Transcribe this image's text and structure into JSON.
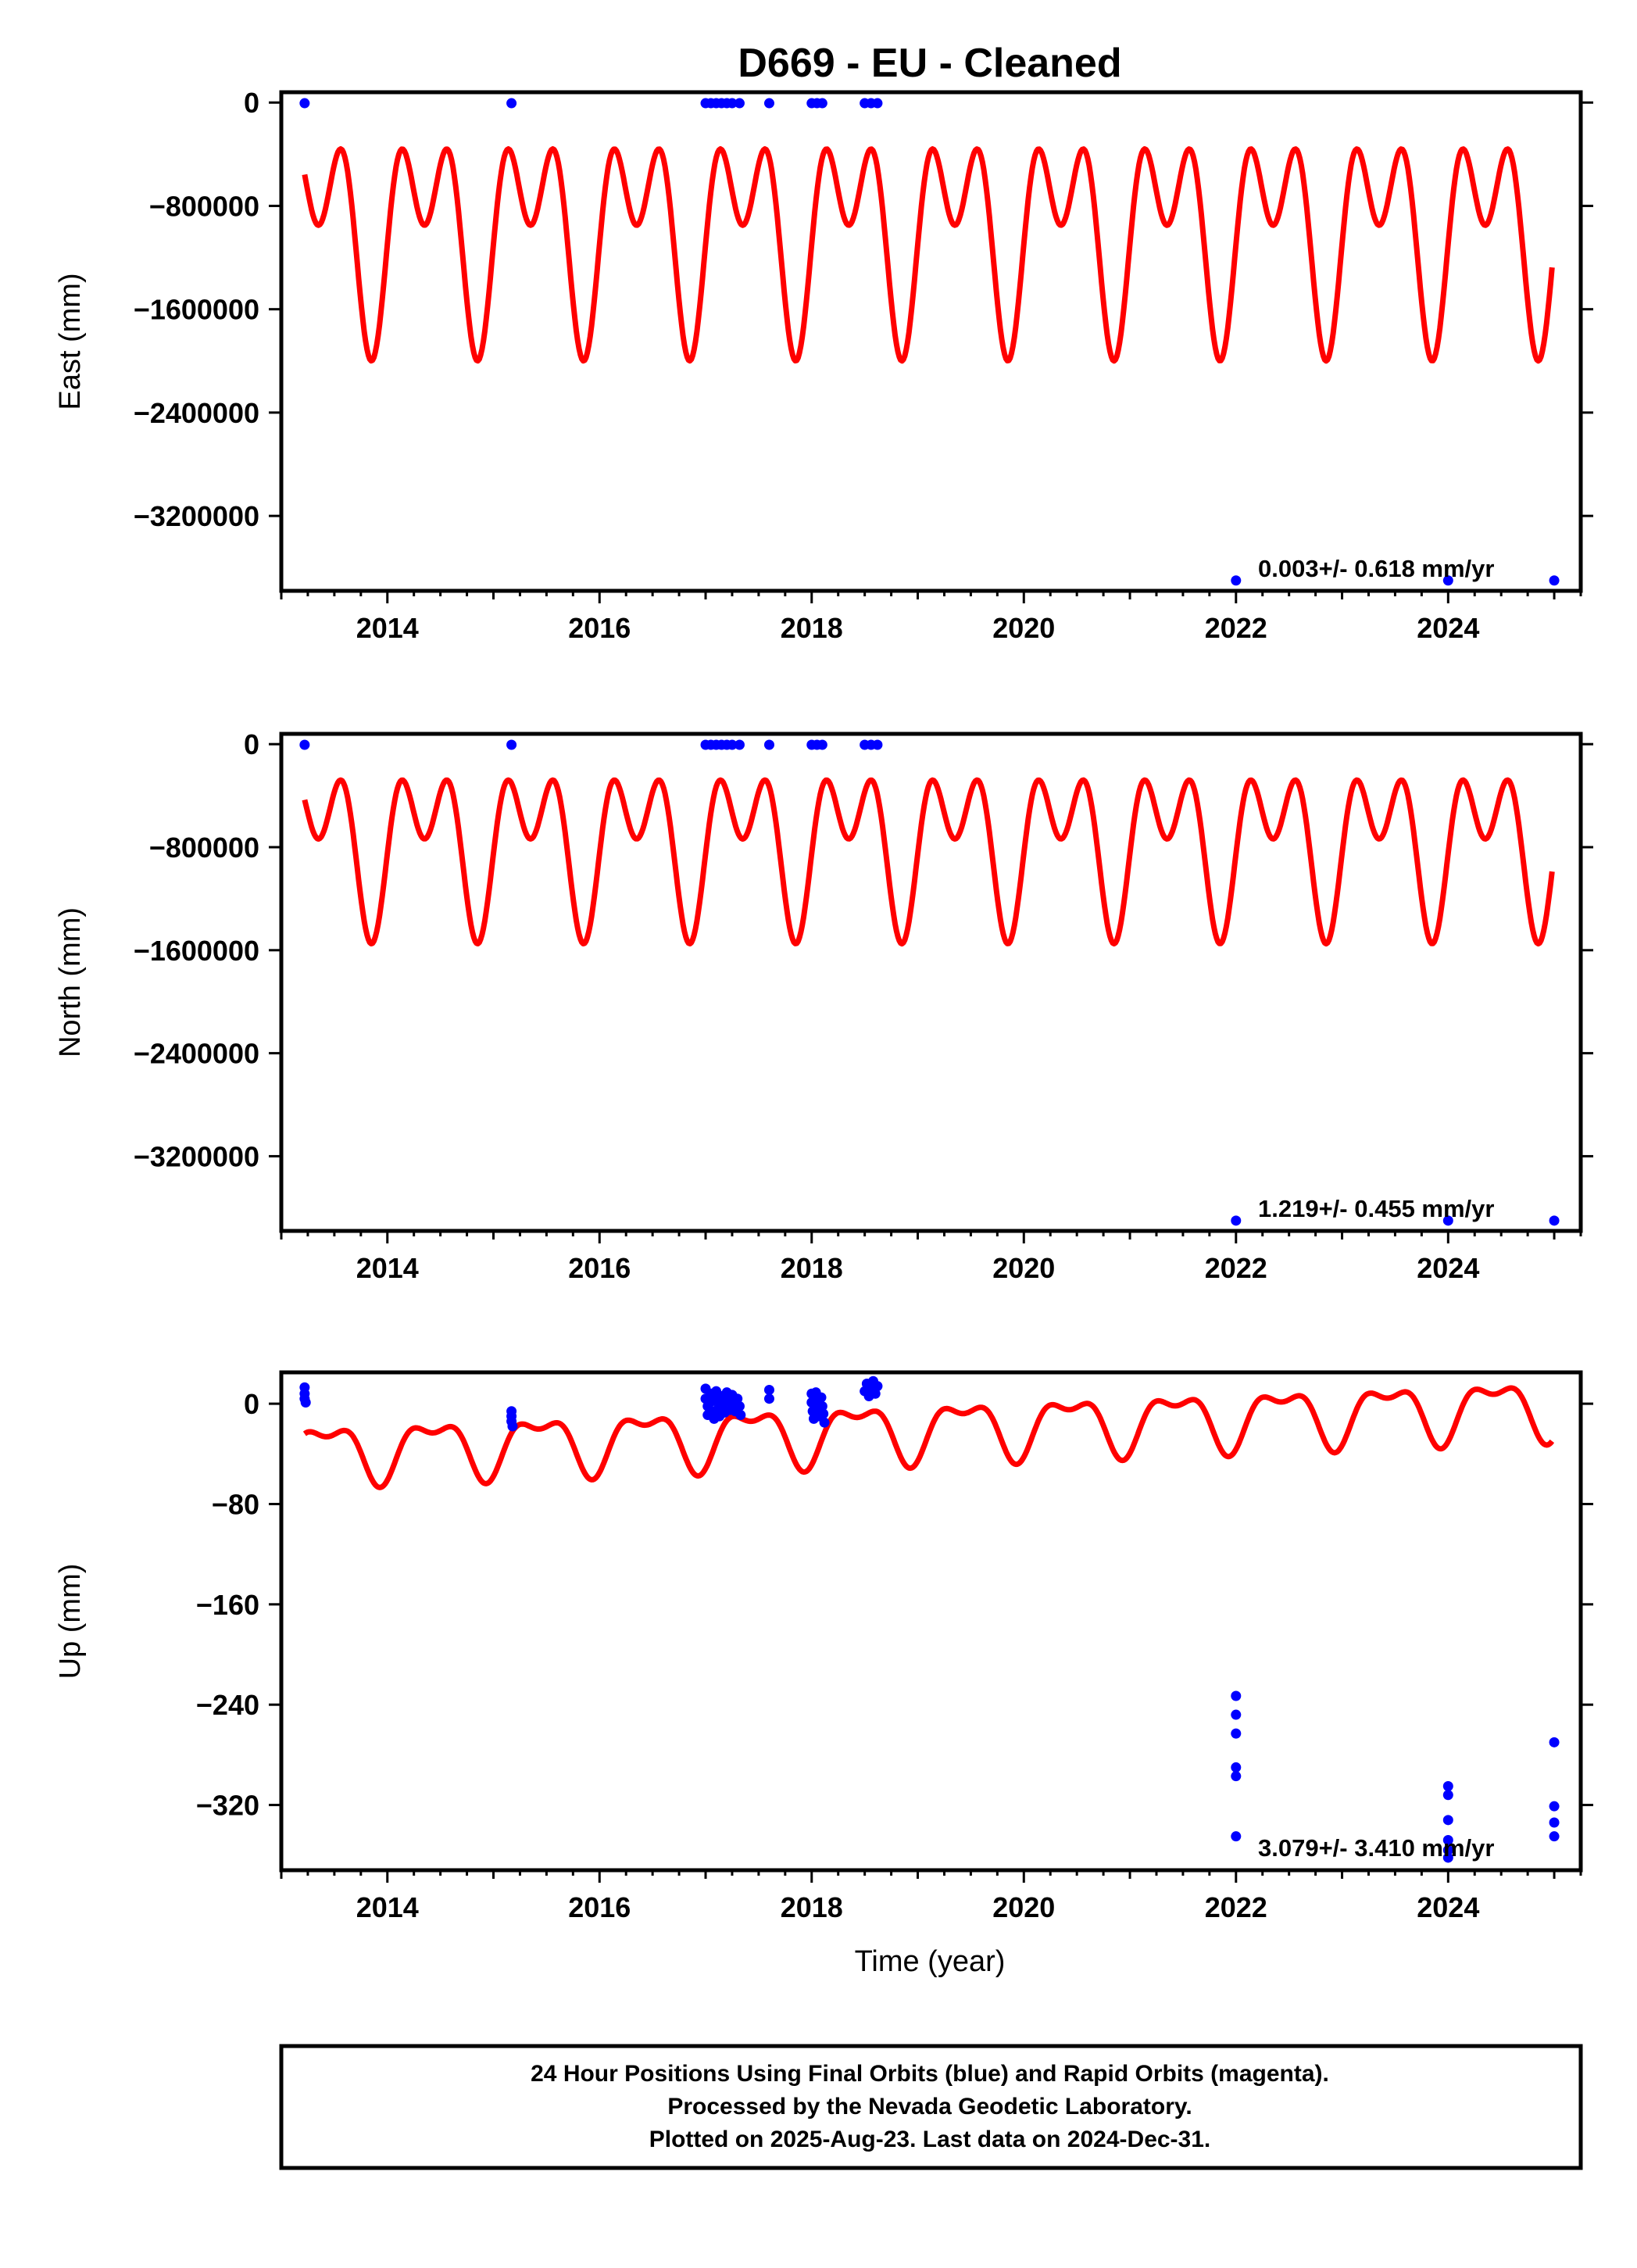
{
  "title": "D669  - EU - Cleaned",
  "xlabel": "Time (year)",
  "footer": {
    "line1": "24 Hour Positions Using Final Orbits (blue) and Rapid Orbits (magenta).",
    "line2": "Processed by the Nevada Geodetic Laboratory.",
    "line3": "Plotted on 2025-Aug-23. Last data on 2024-Dec-31."
  },
  "colors": {
    "data": "#0000ff",
    "model": "#ff0000",
    "frame": "#000000"
  },
  "chart_data": [
    {
      "type": "scatter",
      "ylabel": "East (mm)",
      "xlim": [
        2013.0,
        2025.25
      ],
      "ylim": [
        -3780000,
        80000
      ],
      "x_ticks": [
        "2014",
        "2016",
        "2018",
        "2020",
        "2022",
        "2024"
      ],
      "y_ticks": [
        "0",
        "-800000",
        "-1600000",
        "-2400000",
        "-3200000"
      ],
      "rate_label": "0.003+/- 0.618 mm/yr",
      "points": [
        [
          2013.22,
          -5000
        ],
        [
          2015.17,
          -5000
        ],
        [
          2017.0,
          -5000
        ],
        [
          2017.05,
          -5000
        ],
        [
          2017.1,
          -5000
        ],
        [
          2017.15,
          -5000
        ],
        [
          2017.2,
          -5000
        ],
        [
          2017.25,
          -5000
        ],
        [
          2017.32,
          -5000
        ],
        [
          2017.6,
          -5000
        ],
        [
          2018.0,
          -5000
        ],
        [
          2018.05,
          -5000
        ],
        [
          2018.1,
          -5000
        ],
        [
          2018.5,
          -5000
        ],
        [
          2018.56,
          -5000
        ],
        [
          2018.62,
          -5000
        ],
        [
          2022.0,
          -3700000
        ],
        [
          2024.0,
          -3700000
        ],
        [
          2025.0,
          -3700000
        ]
      ],
      "model": {
        "offset": 0,
        "trend": 0,
        "annual_amp": 1000000,
        "annual_phase": 2013.85,
        "annual_sign": -1,
        "semi_amp": 1000000,
        "semi_phase": 2013.85,
        "semi_sign": -1,
        "shift": 0,
        "start": 2013.22,
        "end": 2024.98,
        "top": 0,
        "bottom": -2000000
      }
    },
    {
      "type": "scatter",
      "ylabel": "North (mm)",
      "xlim": [
        2013.0,
        2025.25
      ],
      "ylim": [
        -3780000,
        80000
      ],
      "x_ticks": [
        "2014",
        "2016",
        "2018",
        "2020",
        "2022",
        "2024"
      ],
      "y_ticks": [
        "0",
        "-800000",
        "-1600000",
        "-2400000",
        "-3200000"
      ],
      "rate_label": "1.219+/- 0.455 mm/yr",
      "points": [
        [
          2013.22,
          -5000
        ],
        [
          2015.17,
          -5000
        ],
        [
          2017.0,
          -5000
        ],
        [
          2017.05,
          -5000
        ],
        [
          2017.1,
          -5000
        ],
        [
          2017.15,
          -5000
        ],
        [
          2017.2,
          -5000
        ],
        [
          2017.25,
          -5000
        ],
        [
          2017.32,
          -5000
        ],
        [
          2017.6,
          -5000
        ],
        [
          2018.0,
          -5000
        ],
        [
          2018.05,
          -5000
        ],
        [
          2018.1,
          -5000
        ],
        [
          2018.5,
          -5000
        ],
        [
          2018.56,
          -5000
        ],
        [
          2018.62,
          -5000
        ],
        [
          2022.0,
          -3700000
        ],
        [
          2024.0,
          -3700000
        ],
        [
          2025.0,
          -3700000
        ]
      ],
      "model": {
        "offset": 0,
        "trend": 0,
        "annual_amp": 1000000,
        "annual_phase": 2013.85,
        "annual_sign": -1,
        "semi_amp": 1000000,
        "semi_phase": 2013.85,
        "semi_sign": -1,
        "shift": 0,
        "start": 2013.22,
        "end": 2024.98,
        "top": 0,
        "bottom": -1550000
      }
    },
    {
      "type": "scatter",
      "ylabel": "Up (mm)",
      "xlim": [
        2013.0,
        2025.25
      ],
      "ylim": [
        -372,
        25
      ],
      "x_ticks": [
        "2014",
        "2016",
        "2018",
        "2020",
        "2022",
        "2024"
      ],
      "y_ticks": [
        "0",
        "-80",
        "-160",
        "-240",
        "-320"
      ],
      "rate_label": "3.079+/- 3.410 mm/yr",
      "points": [
        [
          2013.22,
          13
        ],
        [
          2013.22,
          8
        ],
        [
          2013.22,
          4
        ],
        [
          2013.23,
          1
        ],
        [
          2015.17,
          -6
        ],
        [
          2015.17,
          -10
        ],
        [
          2015.17,
          -14
        ],
        [
          2015.18,
          -18
        ],
        [
          2017.0,
          12
        ],
        [
          2017.0,
          4
        ],
        [
          2017.02,
          -2
        ],
        [
          2017.02,
          -9
        ],
        [
          2017.05,
          8
        ],
        [
          2017.06,
          2
        ],
        [
          2017.07,
          -6
        ],
        [
          2017.08,
          -12
        ],
        [
          2017.1,
          10
        ],
        [
          2017.11,
          3
        ],
        [
          2017.12,
          -4
        ],
        [
          2017.13,
          -10
        ],
        [
          2017.15,
          6
        ],
        [
          2017.16,
          0
        ],
        [
          2017.18,
          -7
        ],
        [
          2017.2,
          9
        ],
        [
          2017.21,
          2
        ],
        [
          2017.23,
          -5
        ],
        [
          2017.25,
          7
        ],
        [
          2017.27,
          1
        ],
        [
          2017.28,
          -6
        ],
        [
          2017.3,
          4
        ],
        [
          2017.32,
          -2
        ],
        [
          2017.33,
          -9
        ],
        [
          2017.6,
          11
        ],
        [
          2017.6,
          4
        ],
        [
          2018.0,
          8
        ],
        [
          2018.0,
          1
        ],
        [
          2018.01,
          -6
        ],
        [
          2018.02,
          -12
        ],
        [
          2018.04,
          9
        ],
        [
          2018.05,
          3
        ],
        [
          2018.06,
          -4
        ],
        [
          2018.07,
          -10
        ],
        [
          2018.09,
          5
        ],
        [
          2018.1,
          -2
        ],
        [
          2018.11,
          -8
        ],
        [
          2018.12,
          -15
        ],
        [
          2018.5,
          10
        ],
        [
          2018.52,
          16
        ],
        [
          2018.54,
          6
        ],
        [
          2018.56,
          13
        ],
        [
          2018.58,
          18
        ],
        [
          2018.6,
          8
        ],
        [
          2018.62,
          14
        ],
        [
          2022.0,
          -233
        ],
        [
          2022.0,
          -248
        ],
        [
          2022.0,
          -263
        ],
        [
          2022.0,
          -290
        ],
        [
          2022.0,
          -297
        ],
        [
          2022.0,
          -345
        ],
        [
          2024.0,
          -305
        ],
        [
          2024.0,
          -312
        ],
        [
          2024.0,
          -332
        ],
        [
          2024.0,
          -348
        ],
        [
          2024.0,
          -356
        ],
        [
          2024.0,
          -362
        ],
        [
          2025.0,
          -270
        ],
        [
          2025.0,
          -321
        ],
        [
          2025.0,
          -334
        ],
        [
          2025.0,
          -345
        ]
      ],
      "model": {
        "offset": -38,
        "trend": 3.079,
        "t0": 2013.22,
        "annual_amp": 21,
        "annual_phase": 2013.93,
        "annual_sign": -1,
        "semi_amp": 10,
        "semi_phase": 2013.93,
        "semi_sign": -1,
        "shift": 0,
        "start": 2013.22,
        "end": 2024.98,
        "top": null,
        "bottom": null
      }
    }
  ]
}
